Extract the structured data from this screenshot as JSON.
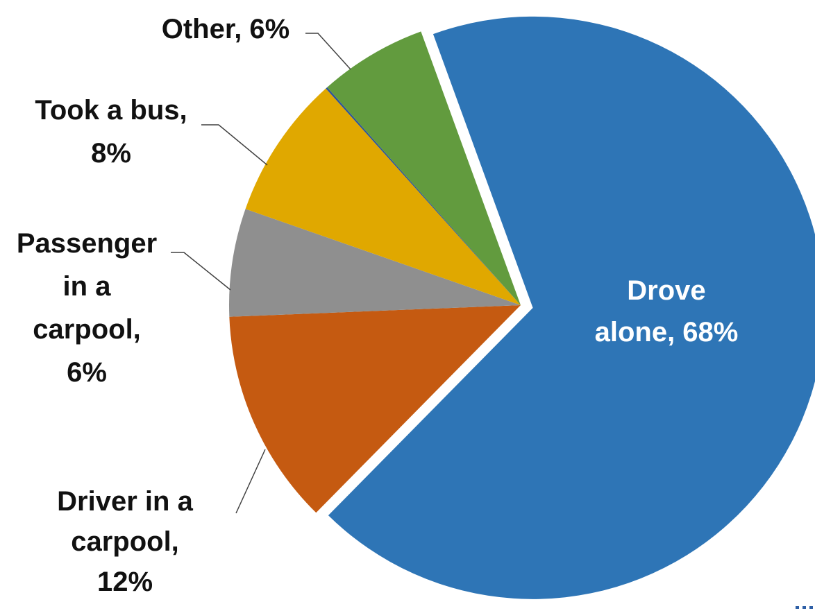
{
  "chart_data": {
    "type": "pie",
    "exploded_slice": "Drove alone",
    "slices": [
      {
        "name": "Drove alone",
        "value": 68,
        "label_lines": [
          "Drove",
          "alone, 68%"
        ],
        "color": "#2e75b6"
      },
      {
        "name": "Driver in a carpool",
        "value": 12,
        "label_lines": [
          "Driver in a",
          "carpool,",
          "12%"
        ],
        "color": "#c55a11"
      },
      {
        "name": "Passenger in a carpool",
        "value": 6,
        "label_lines": [
          "Passenger",
          "in a",
          "carpool,",
          "6%"
        ],
        "color": "#8f8f8f"
      },
      {
        "name": "Took a bus",
        "value": 8,
        "label_lines": [
          "Took a bus,",
          "8%"
        ],
        "color": "#e0a800"
      },
      {
        "name": "",
        "value": 0.1,
        "label_lines": [],
        "color": "#2f5597"
      },
      {
        "name": "Other",
        "value": 6,
        "label_lines": [
          "Other, 6%"
        ],
        "color": "#629b3e"
      }
    ]
  }
}
